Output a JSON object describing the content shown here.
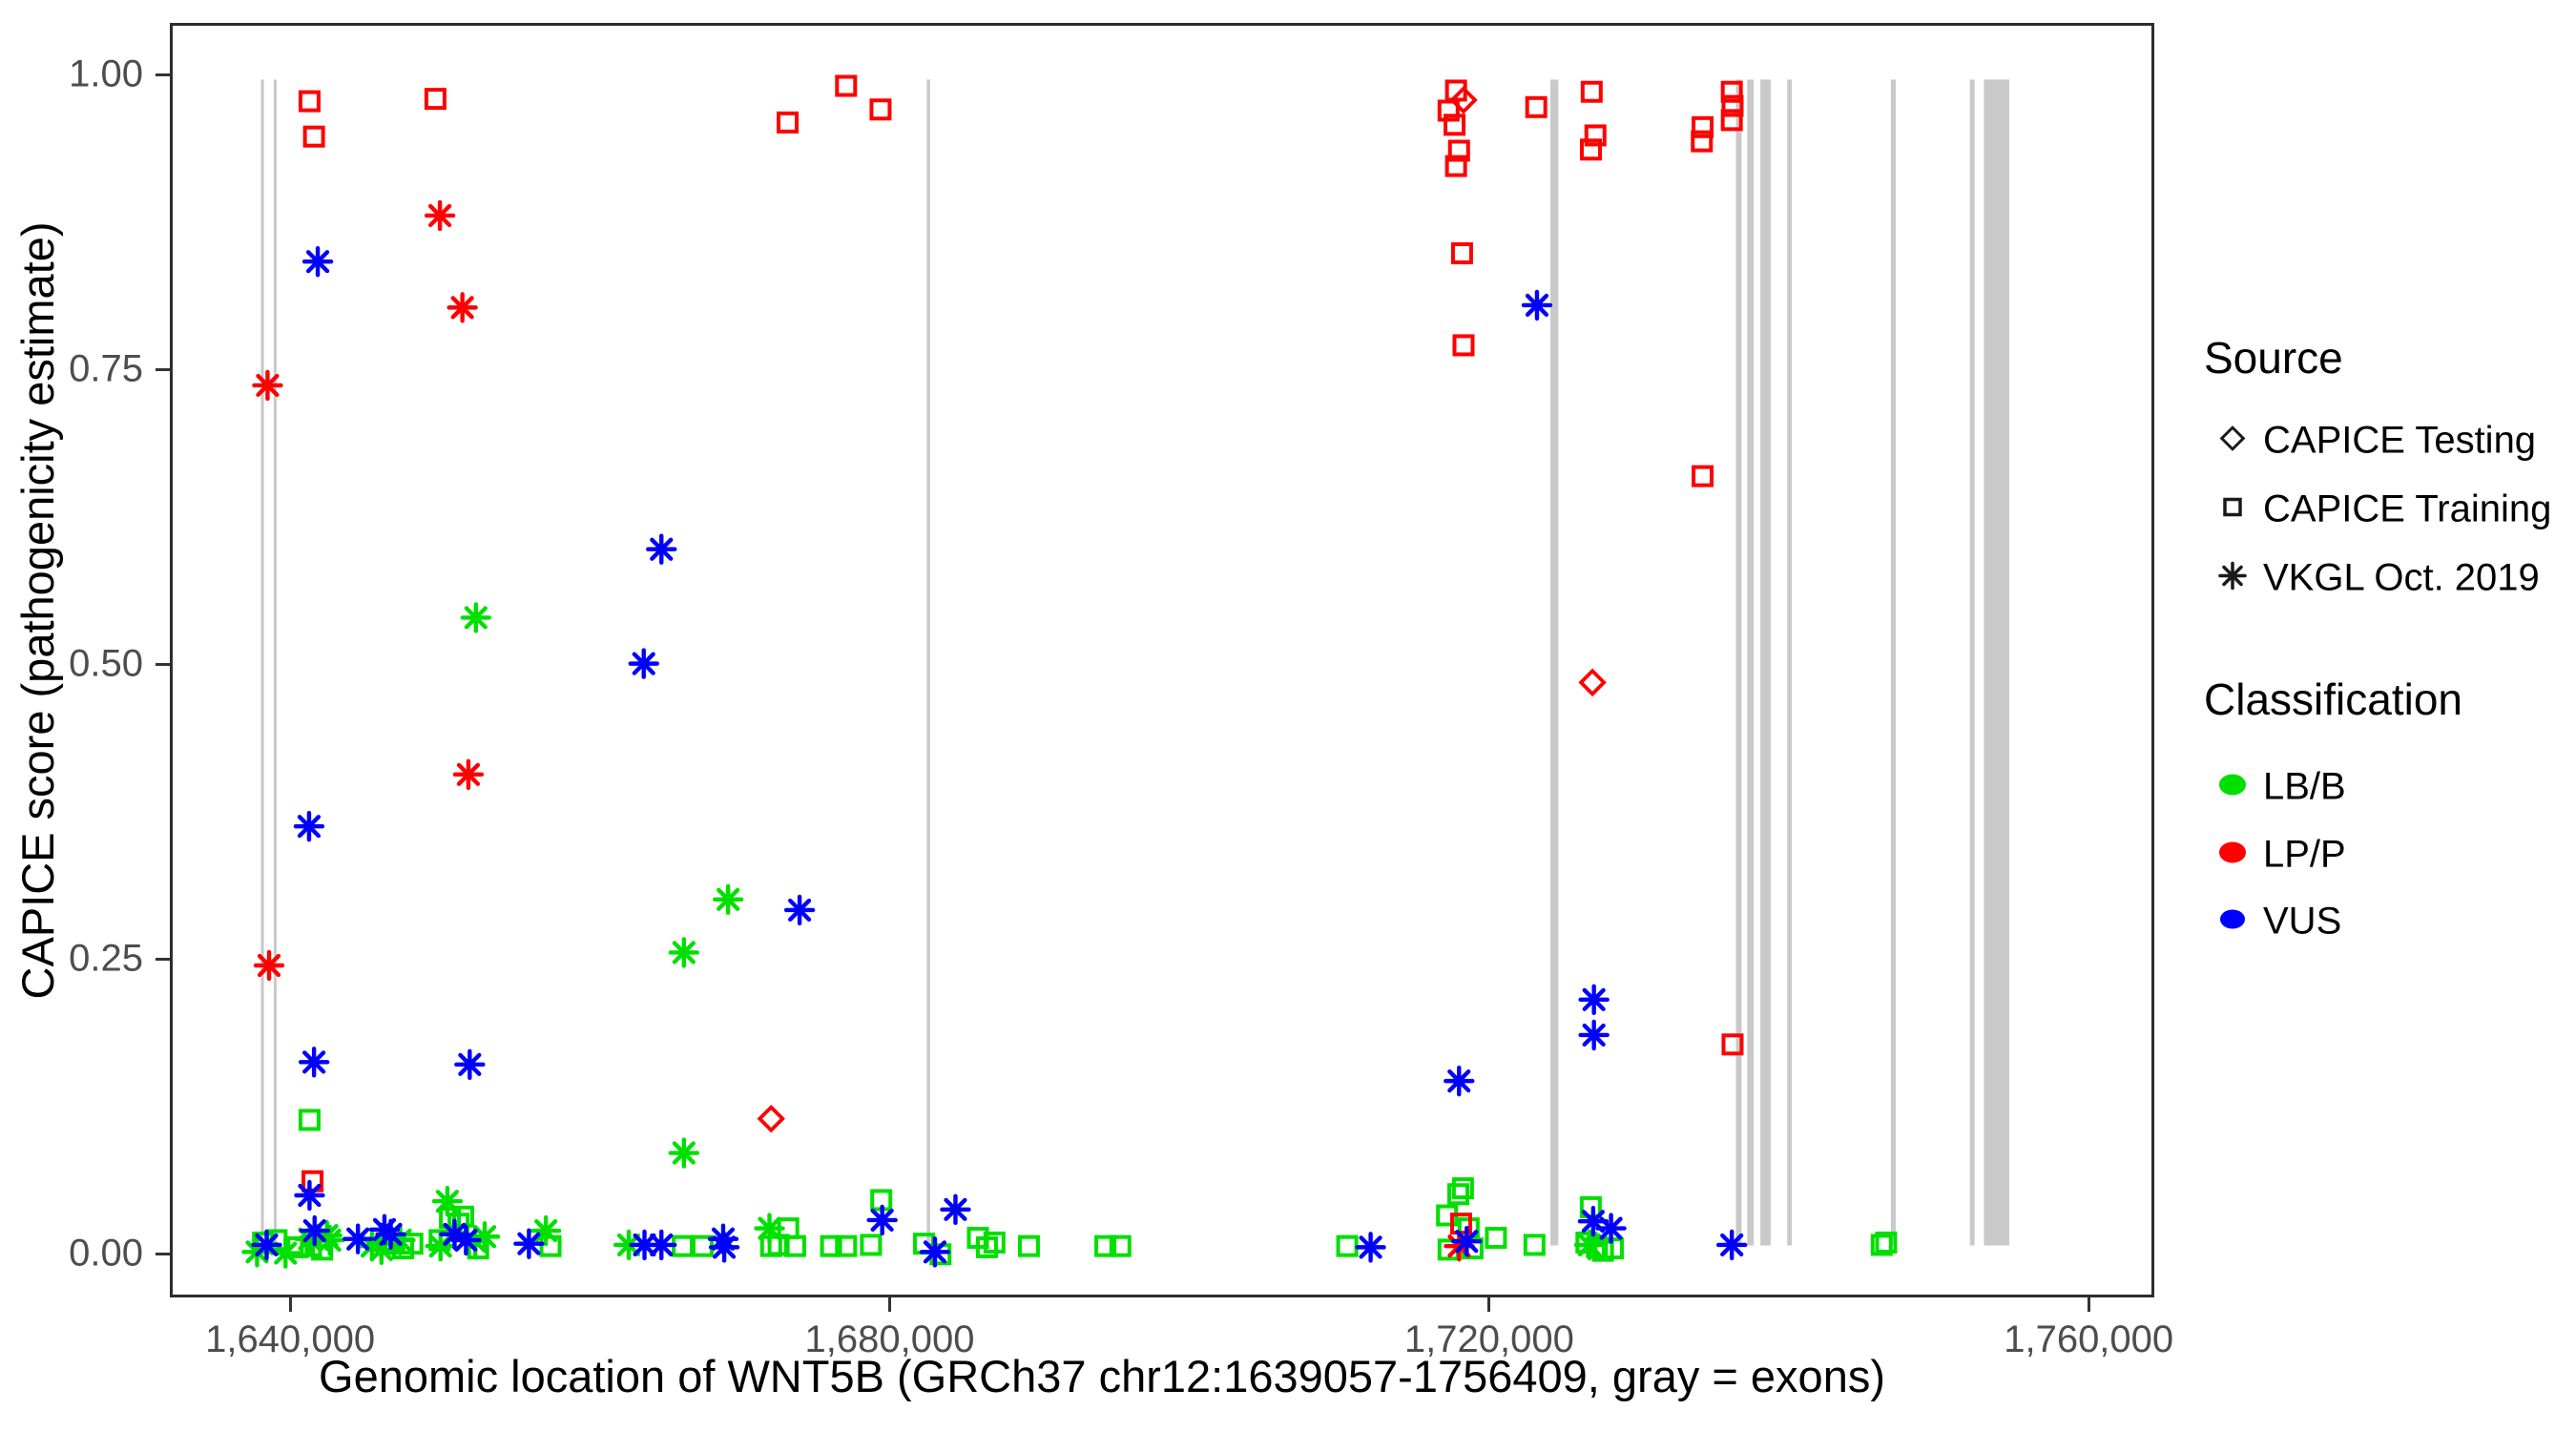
{
  "chart_data": {
    "type": "scatter",
    "title": "",
    "xlabel": "Genomic location of WNT5B (GRCh37 chr12:1639057-1756409, gray = exons)",
    "ylabel": "CAPICE score (pathogenicity estimate)",
    "xlim": [
      1631970,
      1764380
    ],
    "ylim": [
      -0.037,
      1.044
    ],
    "grid": false,
    "legend_position": "right",
    "x_ticks": [
      {
        "value": 1640000,
        "label": "1,640,000"
      },
      {
        "value": 1680000,
        "label": "1,680,000"
      },
      {
        "value": 1720000,
        "label": "1,720,000"
      },
      {
        "value": 1760000,
        "label": "1,760,000"
      }
    ],
    "y_ticks": [
      {
        "value": 0.0,
        "label": "0.00"
      },
      {
        "value": 0.25,
        "label": "0.25"
      },
      {
        "value": 0.5,
        "label": "0.50"
      },
      {
        "value": 0.75,
        "label": "0.75"
      },
      {
        "value": 1.0,
        "label": "1.00"
      }
    ],
    "colors": {
      "LB/B": "#00E000",
      "LP/P": "#FF0000",
      "VUS": "#0000FF"
    },
    "exon_color": "#C9C9C9",
    "frame_color": "#2d2d2d",
    "tick_text_color": "#4d4d4d",
    "legend": {
      "source_title": "Source",
      "source_items": [
        {
          "label": "CAPICE Testing",
          "shape": "diamond"
        },
        {
          "label": "CAPICE Training",
          "shape": "square"
        },
        {
          "label": "VKGL Oct. 2019",
          "shape": "asterisk"
        }
      ],
      "classification_title": "Classification",
      "classification_items": [
        {
          "label": "LB/B",
          "color_key": "LB/B"
        },
        {
          "label": "LP/P",
          "color_key": "LP/P"
        },
        {
          "label": "VUS",
          "color_key": "VUS"
        }
      ]
    },
    "exons_note": "gray vertical bars = exons, genomic start/end pairs",
    "exons": [
      [
        1637950,
        1638150
      ],
      [
        1638810,
        1639000
      ],
      [
        1682380,
        1682600
      ],
      [
        1723990,
        1724520
      ],
      [
        1736370,
        1736750
      ],
      [
        1737120,
        1737560
      ],
      [
        1738000,
        1738690
      ],
      [
        1739790,
        1740100
      ],
      [
        1746710,
        1747030
      ],
      [
        1751980,
        1752290
      ],
      [
        1752920,
        1754610
      ]
    ],
    "point_encoding": {
      "fields": [
        "genomic_position",
        "capice_score",
        "shape",
        "classification"
      ],
      "shapes": {
        "s": "square = CAPICE Training",
        "d": "diamond = CAPICE Testing",
        "a": "asterisk = VKGL Oct. 2019"
      },
      "classes": {
        "b": "LB/B",
        "p": "LP/P",
        "v": "VUS"
      }
    },
    "points": [
      [
        1641100,
        0.116,
        "s",
        "b"
      ],
      [
        1638000,
        0.012,
        "s",
        "b"
      ],
      [
        1638900,
        0.014,
        "s",
        "b"
      ],
      [
        1640300,
        0.008,
        "s",
        "b"
      ],
      [
        1641200,
        0.009,
        "s",
        "b"
      ],
      [
        1641940,
        0.006,
        "s",
        "b"
      ],
      [
        1646400,
        0.011,
        "s",
        "b"
      ],
      [
        1647340,
        0.007,
        "s",
        "b"
      ],
      [
        1647960,
        0.011,
        "s",
        "b"
      ],
      [
        1649780,
        0.014,
        "s",
        "b"
      ],
      [
        1650470,
        0.033,
        "s",
        "b"
      ],
      [
        1651350,
        0.034,
        "s",
        "b"
      ],
      [
        1651040,
        0.028,
        "s",
        "b"
      ],
      [
        1652350,
        0.007,
        "s",
        "b"
      ],
      [
        1657180,
        0.009,
        "s",
        "b"
      ],
      [
        1666000,
        0.009,
        "s",
        "b"
      ],
      [
        1667330,
        0.009,
        "s",
        "b"
      ],
      [
        1671900,
        0.009,
        "s",
        "b"
      ],
      [
        1672400,
        0.01,
        "s",
        "b"
      ],
      [
        1673040,
        0.024,
        "s",
        "b"
      ],
      [
        1673500,
        0.009,
        "s",
        "b"
      ],
      [
        1675900,
        0.009,
        "s",
        "b"
      ],
      [
        1676900,
        0.009,
        "s",
        "b"
      ],
      [
        1678560,
        0.01,
        "s",
        "b"
      ],
      [
        1679250,
        0.048,
        "s",
        "b"
      ],
      [
        1682100,
        0.011,
        "s",
        "b"
      ],
      [
        1683200,
        0.002,
        "s",
        "b"
      ],
      [
        1685700,
        0.016,
        "s",
        "b"
      ],
      [
        1686300,
        0.008,
        "s",
        "b"
      ],
      [
        1686800,
        0.012,
        "s",
        "b"
      ],
      [
        1689100,
        0.009,
        "s",
        "b"
      ],
      [
        1694200,
        0.009,
        "s",
        "b"
      ],
      [
        1695200,
        0.009,
        "s",
        "b"
      ],
      [
        1710340,
        0.009,
        "s",
        "b"
      ],
      [
        1718060,
        0.058,
        "s",
        "b"
      ],
      [
        1717750,
        0.053,
        "s",
        "b"
      ],
      [
        1717000,
        0.035,
        "s",
        "b"
      ],
      [
        1718440,
        0.024,
        "s",
        "b"
      ],
      [
        1717100,
        0.006,
        "s",
        "b"
      ],
      [
        1718700,
        0.007,
        "s",
        "b"
      ],
      [
        1720260,
        0.016,
        "s",
        "b"
      ],
      [
        1722830,
        0.01,
        "s",
        "b"
      ],
      [
        1726590,
        0.042,
        "s",
        "b"
      ],
      [
        1726300,
        0.012,
        "s",
        "b"
      ],
      [
        1727000,
        0.008,
        "s",
        "b"
      ],
      [
        1727400,
        0.005,
        "s",
        "b"
      ],
      [
        1728060,
        0.007,
        "s",
        "b"
      ],
      [
        1746000,
        0.01,
        "s",
        "b"
      ],
      [
        1746300,
        0.012,
        "s",
        "b"
      ],
      [
        1641100,
        0.98,
        "s",
        "p"
      ],
      [
        1641400,
        0.95,
        "s",
        "p"
      ],
      [
        1649500,
        0.982,
        "s",
        "p"
      ],
      [
        1673000,
        0.962,
        "s",
        "p"
      ],
      [
        1676900,
        0.993,
        "s",
        "p"
      ],
      [
        1679200,
        0.973,
        "s",
        "p"
      ],
      [
        1717600,
        0.989,
        "s",
        "p"
      ],
      [
        1717100,
        0.972,
        "s",
        "p"
      ],
      [
        1717500,
        0.96,
        "s",
        "p"
      ],
      [
        1717800,
        0.938,
        "s",
        "p"
      ],
      [
        1717600,
        0.925,
        "s",
        "p"
      ],
      [
        1718000,
        0.851,
        "s",
        "p"
      ],
      [
        1718100,
        0.773,
        "s",
        "p"
      ],
      [
        1722950,
        0.975,
        "s",
        "p"
      ],
      [
        1726650,
        0.988,
        "s",
        "p"
      ],
      [
        1726900,
        0.951,
        "s",
        "p"
      ],
      [
        1726600,
        0.939,
        "s",
        "p"
      ],
      [
        1734050,
        0.958,
        "s",
        "p"
      ],
      [
        1734000,
        0.946,
        "s",
        "p"
      ],
      [
        1736000,
        0.988,
        "s",
        "p"
      ],
      [
        1736050,
        0.976,
        "s",
        "p"
      ],
      [
        1736000,
        0.964,
        "s",
        "p"
      ],
      [
        1734050,
        0.662,
        "s",
        "p"
      ],
      [
        1736050,
        0.18,
        "s",
        "p"
      ],
      [
        1641300,
        0.064,
        "s",
        "p"
      ],
      [
        1717940,
        0.028,
        "s",
        "p"
      ],
      [
        1718100,
        0.981,
        "d",
        "p"
      ],
      [
        1726700,
        0.487,
        "d",
        "p"
      ],
      [
        1671900,
        0.117,
        "d",
        "p"
      ],
      [
        1652200,
        0.542,
        "a",
        "b"
      ],
      [
        1666080,
        0.258,
        "a",
        "b"
      ],
      [
        1669030,
        0.303,
        "a",
        "b"
      ],
      [
        1666080,
        0.088,
        "a",
        "b"
      ],
      [
        1650300,
        0.047,
        "a",
        "b"
      ],
      [
        1637600,
        0.004,
        "a",
        "b"
      ],
      [
        1639500,
        0.003,
        "a",
        "b"
      ],
      [
        1641100,
        0.015,
        "a",
        "b"
      ],
      [
        1642260,
        0.018,
        "a",
        "b"
      ],
      [
        1642450,
        0.014,
        "a",
        "b"
      ],
      [
        1645270,
        0.009,
        "a",
        "b"
      ],
      [
        1645900,
        0.006,
        "a",
        "b"
      ],
      [
        1647150,
        0.014,
        "a",
        "b"
      ],
      [
        1649840,
        0.009,
        "a",
        "b"
      ],
      [
        1652160,
        0.013,
        "a",
        "b"
      ],
      [
        1652790,
        0.017,
        "a",
        "b"
      ],
      [
        1656870,
        0.022,
        "a",
        "b"
      ],
      [
        1662400,
        0.01,
        "a",
        "b"
      ],
      [
        1671790,
        0.024,
        "a",
        "b"
      ],
      [
        1726500,
        0.01,
        "a",
        "b"
      ],
      [
        1638300,
        0.739,
        "a",
        "p"
      ],
      [
        1638400,
        0.247,
        "a",
        "p"
      ],
      [
        1649800,
        0.883,
        "a",
        "p"
      ],
      [
        1651300,
        0.805,
        "a",
        "p"
      ],
      [
        1651700,
        0.409,
        "a",
        "p"
      ],
      [
        1717810,
        0.009,
        "a",
        "p"
      ],
      [
        1641650,
        0.844,
        "a",
        "v"
      ],
      [
        1641070,
        0.365,
        "a",
        "v"
      ],
      [
        1641400,
        0.165,
        "a",
        "v"
      ],
      [
        1641100,
        0.052,
        "a",
        "v"
      ],
      [
        1641440,
        0.022,
        "a",
        "v"
      ],
      [
        1663400,
        0.503,
        "a",
        "v"
      ],
      [
        1664580,
        0.6,
        "a",
        "v"
      ],
      [
        1673800,
        0.294,
        "a",
        "v"
      ],
      [
        1651790,
        0.163,
        "a",
        "v"
      ],
      [
        1723000,
        0.807,
        "a",
        "v"
      ],
      [
        1726800,
        0.218,
        "a",
        "v"
      ],
      [
        1726800,
        0.188,
        "a",
        "v"
      ],
      [
        1717800,
        0.149,
        "a",
        "v"
      ],
      [
        1684200,
        0.04,
        "a",
        "v"
      ],
      [
        1682830,
        0.004,
        "a",
        "v"
      ],
      [
        1679310,
        0.031,
        "a",
        "v"
      ],
      [
        1711900,
        0.008,
        "a",
        "v"
      ],
      [
        1718310,
        0.013,
        "a",
        "v"
      ],
      [
        1726750,
        0.03,
        "a",
        "v"
      ],
      [
        1727940,
        0.024,
        "a",
        "v"
      ],
      [
        1736000,
        0.01,
        "a",
        "v"
      ],
      [
        1638240,
        0.01,
        "a",
        "v"
      ],
      [
        1644330,
        0.015,
        "a",
        "v"
      ],
      [
        1646100,
        0.023,
        "a",
        "v"
      ],
      [
        1646520,
        0.019,
        "a",
        "v"
      ],
      [
        1650780,
        0.019,
        "a",
        "v"
      ],
      [
        1651540,
        0.014,
        "a",
        "v"
      ],
      [
        1655740,
        0.011,
        "a",
        "v"
      ],
      [
        1663450,
        0.01,
        "a",
        "v"
      ],
      [
        1664580,
        0.01,
        "a",
        "v"
      ],
      [
        1668700,
        0.015,
        "a",
        "v"
      ],
      [
        1668770,
        0.008,
        "a",
        "v"
      ]
    ]
  }
}
